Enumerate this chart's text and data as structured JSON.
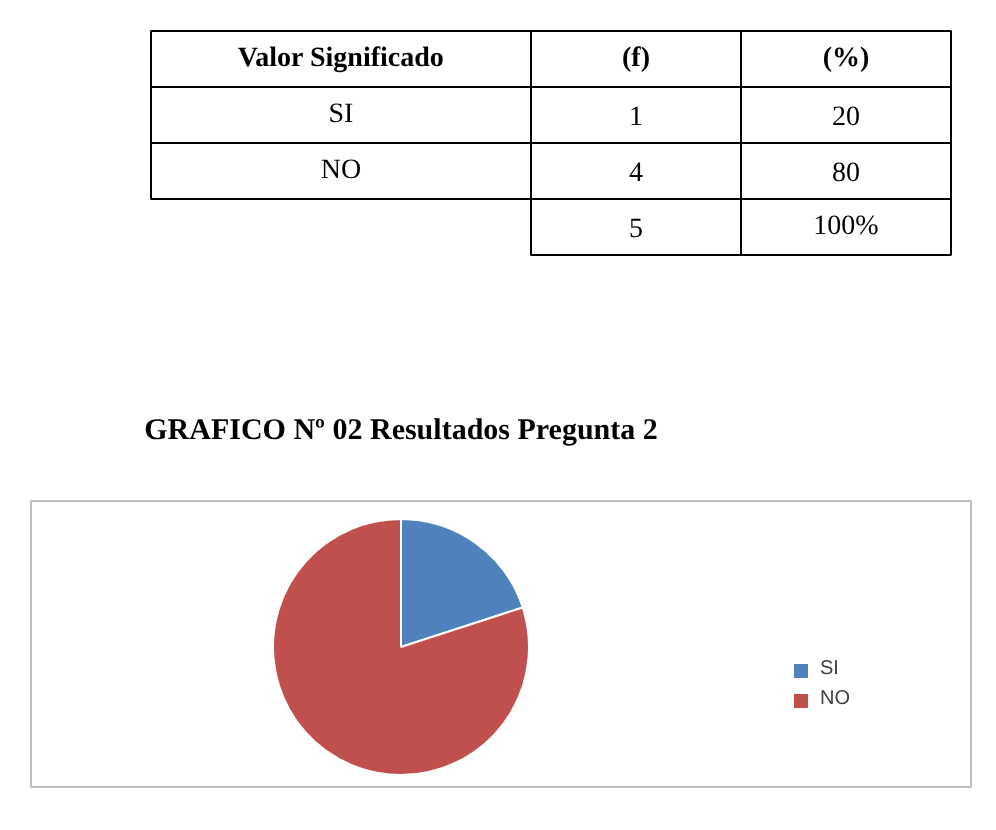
{
  "chart_data": {
    "type": "pie",
    "title": "GRAFICO Nº 02 Resultados Pregunta 2",
    "categories": [
      "SI",
      "NO"
    ],
    "values": [
      20,
      80
    ],
    "colors": [
      "#4f81bd",
      "#c0504d"
    ],
    "legend": "right",
    "annotations": [
      "Valor Significado",
      "(f)",
      "(%)",
      "SI",
      "1",
      "20",
      "NO",
      "4",
      "80",
      "5",
      "100%"
    ]
  }
}
